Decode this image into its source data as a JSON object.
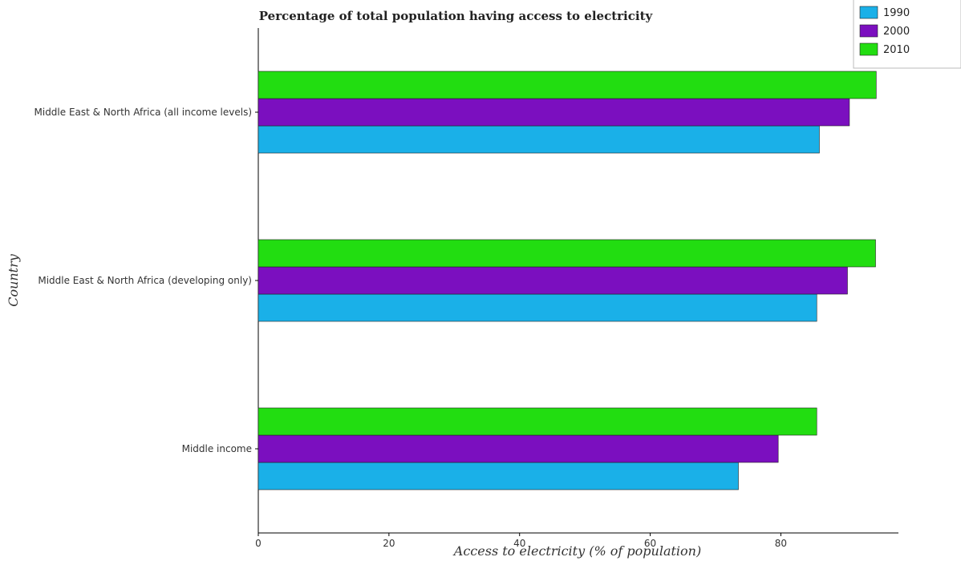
{
  "chart_data": {
    "type": "bar",
    "orientation": "horizontal",
    "title": "Percentage of total population having access to electricity",
    "xlabel": "Access to electricity (% of population)",
    "ylabel": "Country",
    "xlim": [
      0,
      98
    ],
    "xticks": [
      0,
      20,
      40,
      60,
      80
    ],
    "categories": [
      "Middle East & North Africa (all income levels)",
      "Middle East & North Africa (developing only)",
      "Middle income"
    ],
    "series": [
      {
        "name": "1990",
        "color": "#1ab0e8",
        "values": [
          85.9,
          85.5,
          73.5
        ]
      },
      {
        "name": "2000",
        "color": "#7b0fbf",
        "values": [
          90.5,
          90.2,
          79.6
        ]
      },
      {
        "name": "2010",
        "color": "#22dd11",
        "values": [
          94.6,
          94.5,
          85.5
        ]
      }
    ],
    "legend_position": "top-right",
    "grid": false
  }
}
